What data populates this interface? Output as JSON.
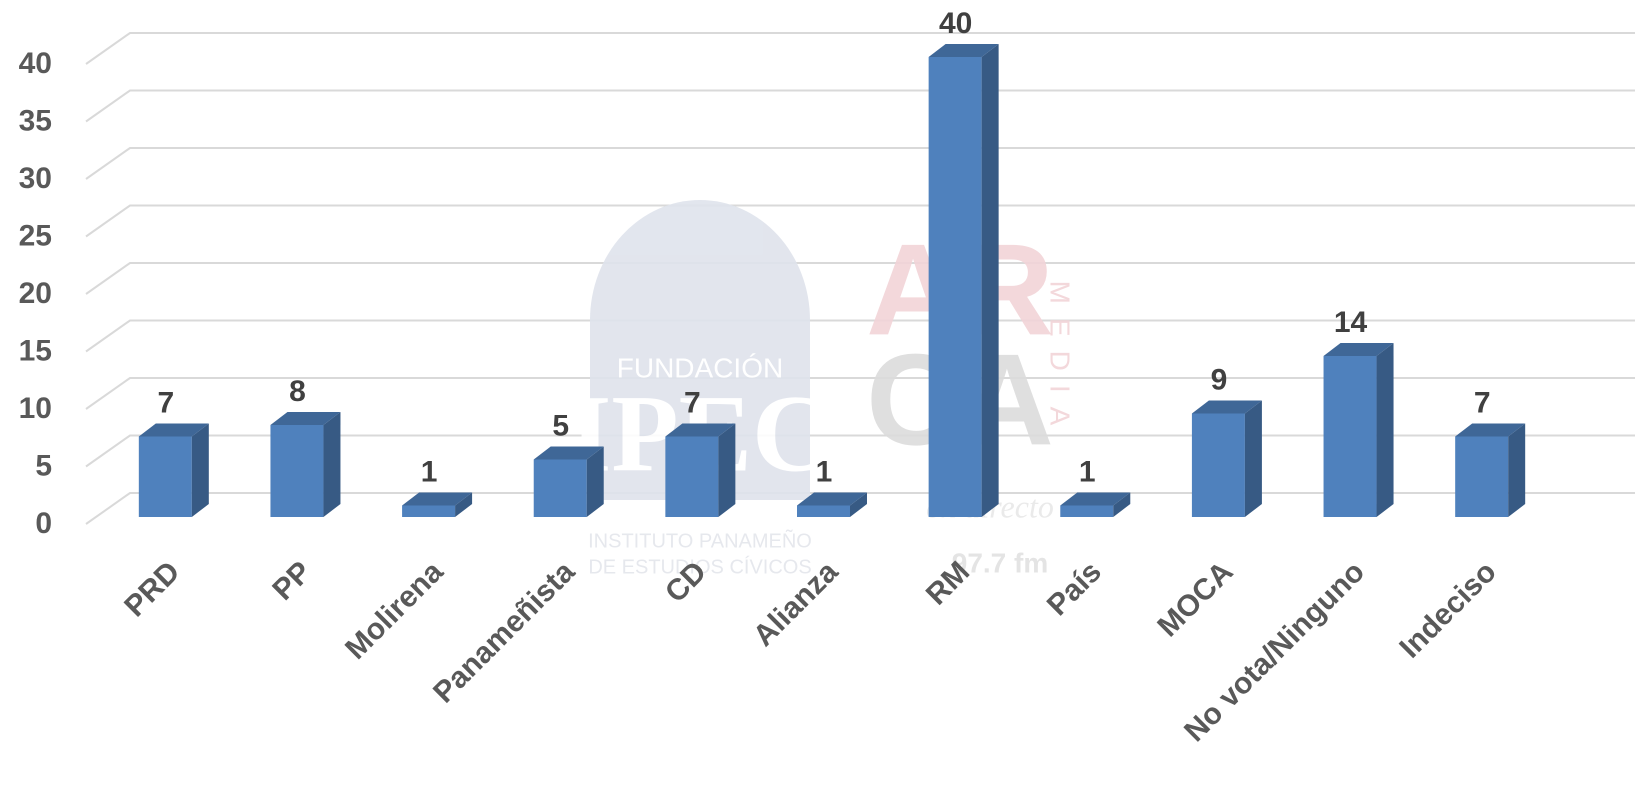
{
  "chart_data": {
    "type": "bar3d",
    "categories": [
      "PRD",
      "PP",
      "Molirena",
      "Panameñista",
      "CD",
      "Alianza",
      "RM",
      "País",
      "MOCA",
      "No vota/Ninguno",
      "Indeciso"
    ],
    "values": [
      7,
      8,
      1,
      5,
      7,
      1,
      40,
      1,
      9,
      14,
      7
    ],
    "color": "#4f81bd",
    "ylim": [
      0,
      40
    ],
    "yticks": [
      0,
      5,
      10,
      15,
      20,
      25,
      30,
      35,
      40
    ],
    "grid": true
  },
  "watermarks": {
    "ipec": [
      "FUNDACIÓN",
      "IPEC",
      "INSTITUTO PANAMEÑO",
      "DE ESTUDIOS CÍVICOS"
    ],
    "arca": [
      "AR",
      "CA",
      "MEDIA",
      "en directo",
      "97.7 fm"
    ]
  }
}
